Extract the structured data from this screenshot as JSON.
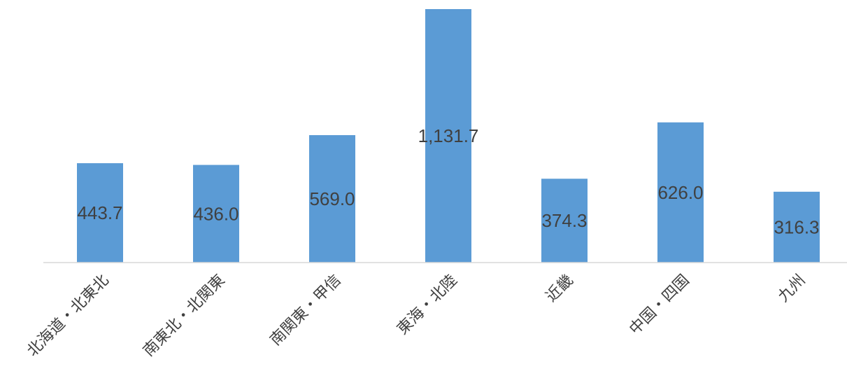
{
  "chart_data": {
    "type": "bar",
    "title": "",
    "xlabel": "",
    "ylabel": "",
    "categories": [
      "北海道・北東北",
      "南東北・北関東",
      "南関東・甲信",
      "東海・北陸",
      "近畿",
      "中国・四国",
      "九州"
    ],
    "values": [
      443.7,
      436.0,
      569.0,
      1131.7,
      374.3,
      626.0,
      316.3
    ],
    "value_labels": [
      "443.7",
      "436.0",
      "569.0",
      "1,131.7",
      "374.3",
      "626.0",
      "316.3"
    ],
    "ylim": [
      0,
      1131.7
    ],
    "grid": false,
    "legend": "none",
    "bar_color": "#5B9BD5",
    "axis_color": "#D9D9D9",
    "label_color": "#404040"
  }
}
